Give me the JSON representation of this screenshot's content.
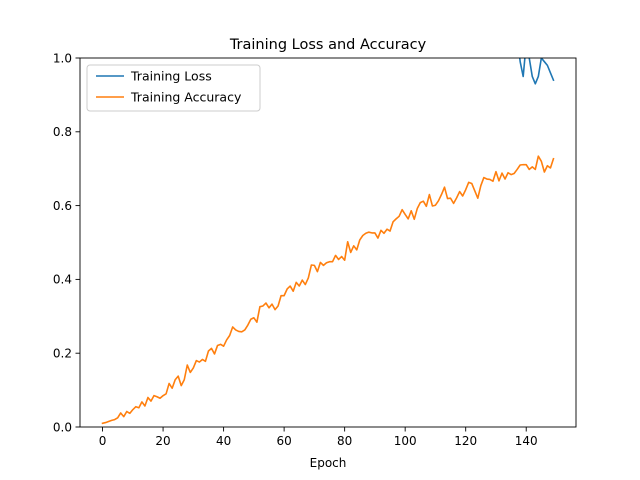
{
  "chart_data": {
    "type": "line",
    "title": "Training Loss and Accuracy",
    "xlabel": "Epoch",
    "ylabel": "",
    "xlim": [
      -7.45,
      156.45
    ],
    "ylim": [
      0.0,
      1.0
    ],
    "xticks": [
      0,
      20,
      40,
      60,
      80,
      100,
      120,
      140
    ],
    "yticks": [
      0.0,
      0.2,
      0.4,
      0.6,
      0.8,
      1.0
    ],
    "xtick_labels": [
      "0",
      "20",
      "40",
      "60",
      "80",
      "100",
      "120",
      "140"
    ],
    "ytick_labels": [
      "0.0",
      "0.2",
      "0.4",
      "0.6",
      "0.8",
      "1.0"
    ],
    "grid": false,
    "legend_position": "top-left",
    "series": [
      {
        "name": "Training Loss",
        "color": "#1f77b4",
        "x": [
          137,
          138,
          139,
          140,
          141,
          142,
          143,
          144,
          145,
          146,
          147,
          148,
          149
        ],
        "y": [
          1.06,
          0.99,
          0.95,
          1.04,
          1.0,
          0.95,
          0.93,
          0.95,
          1.0,
          0.99,
          0.98,
          0.96,
          0.94
        ]
      },
      {
        "name": "Training Accuracy",
        "color": "#ff7f0e",
        "x": [
          0,
          1,
          2,
          3,
          4,
          5,
          6,
          7,
          8,
          9,
          10,
          11,
          12,
          13,
          14,
          15,
          16,
          17,
          18,
          19,
          20,
          21,
          22,
          23,
          24,
          25,
          26,
          27,
          28,
          29,
          30,
          31,
          32,
          33,
          34,
          35,
          36,
          37,
          38,
          39,
          40,
          41,
          42,
          43,
          44,
          45,
          46,
          47,
          48,
          49,
          50,
          51,
          52,
          53,
          54,
          55,
          56,
          57,
          58,
          59,
          60,
          61,
          62,
          63,
          64,
          65,
          66,
          67,
          68,
          69,
          70,
          71,
          72,
          73,
          74,
          75,
          76,
          77,
          78,
          79,
          80,
          81,
          82,
          83,
          84,
          85,
          86,
          87,
          88,
          89,
          90,
          91,
          92,
          93,
          94,
          95,
          96,
          97,
          98,
          99,
          100,
          101,
          102,
          103,
          104,
          105,
          106,
          107,
          108,
          109,
          110,
          111,
          112,
          113,
          114,
          115,
          116,
          117,
          118,
          119,
          120,
          121,
          122,
          123,
          124,
          125,
          126,
          127,
          128,
          129,
          130,
          131,
          132,
          133,
          134,
          135,
          136,
          137,
          138,
          139,
          140,
          141,
          142,
          143,
          144,
          145,
          146,
          147,
          148,
          149
        ],
        "y": [
          0.01,
          0.012,
          0.015,
          0.018,
          0.02,
          0.025,
          0.038,
          0.028,
          0.042,
          0.037,
          0.047,
          0.055,
          0.052,
          0.068,
          0.057,
          0.08,
          0.07,
          0.085,
          0.082,
          0.078,
          0.085,
          0.09,
          0.118,
          0.105,
          0.128,
          0.138,
          0.112,
          0.128,
          0.168,
          0.148,
          0.16,
          0.18,
          0.176,
          0.183,
          0.178,
          0.206,
          0.213,
          0.198,
          0.221,
          0.224,
          0.219,
          0.236,
          0.248,
          0.271,
          0.263,
          0.259,
          0.258,
          0.263,
          0.276,
          0.292,
          0.296,
          0.284,
          0.326,
          0.328,
          0.336,
          0.323,
          0.333,
          0.318,
          0.328,
          0.356,
          0.356,
          0.374,
          0.382,
          0.368,
          0.392,
          0.382,
          0.398,
          0.386,
          0.404,
          0.439,
          0.438,
          0.421,
          0.446,
          0.438,
          0.445,
          0.448,
          0.448,
          0.465,
          0.454,
          0.462,
          0.452,
          0.502,
          0.473,
          0.491,
          0.48,
          0.507,
          0.519,
          0.525,
          0.528,
          0.526,
          0.526,
          0.512,
          0.533,
          0.525,
          0.536,
          0.531,
          0.556,
          0.564,
          0.571,
          0.589,
          0.576,
          0.564,
          0.586,
          0.563,
          0.592,
          0.608,
          0.612,
          0.598,
          0.63,
          0.599,
          0.601,
          0.613,
          0.63,
          0.65,
          0.619,
          0.62,
          0.606,
          0.621,
          0.638,
          0.626,
          0.643,
          0.663,
          0.66,
          0.64,
          0.62,
          0.654,
          0.676,
          0.672,
          0.671,
          0.666,
          0.692,
          0.667,
          0.688,
          0.672,
          0.689,
          0.684,
          0.687,
          0.698,
          0.71,
          0.711,
          0.711,
          0.698,
          0.705,
          0.698,
          0.734,
          0.72,
          0.691,
          0.708,
          0.702,
          0.727
        ]
      }
    ]
  }
}
